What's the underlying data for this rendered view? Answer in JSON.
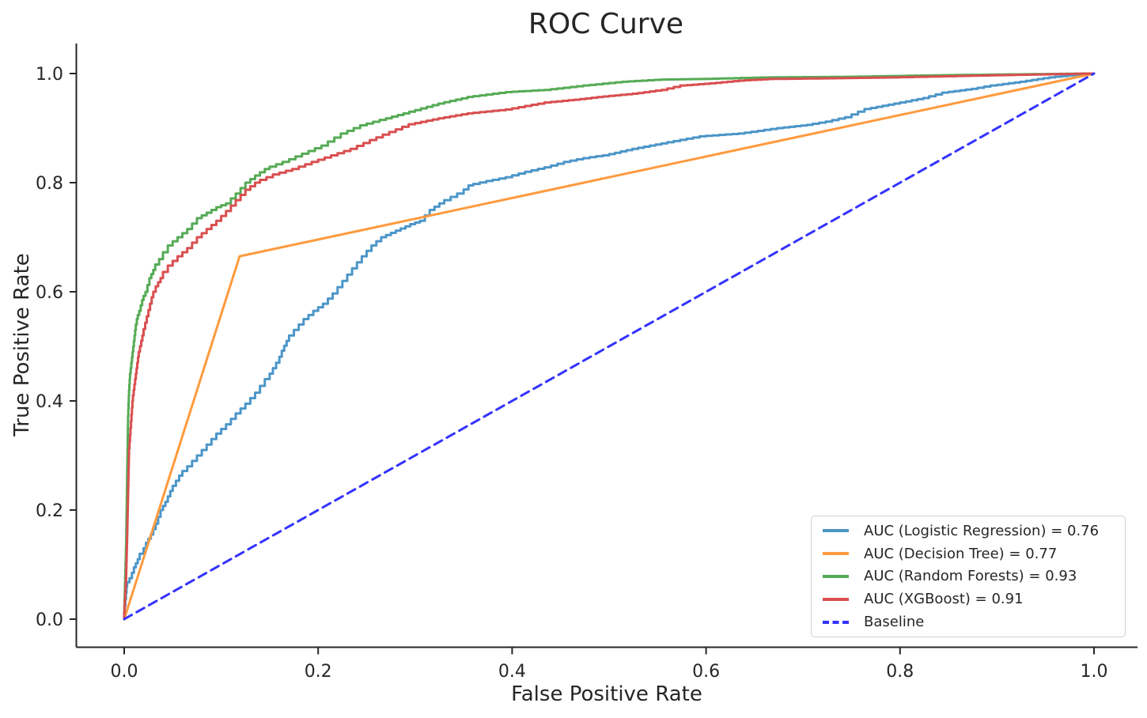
{
  "chart_data": {
    "type": "line",
    "title": "ROC Curve",
    "xlabel": "False Positive Rate",
    "ylabel": "True Positive Rate",
    "grid": false,
    "legend_position": "lower right",
    "axis_range_x": [
      -0.05,
      1.05
    ],
    "axis_range_y": [
      -0.05,
      1.05
    ],
    "x_ticks": {
      "values": [
        0.0,
        0.2,
        0.4,
        0.6,
        0.8,
        1.0
      ],
      "labels": [
        "0.0",
        "0.2",
        "0.4",
        "0.6",
        "0.8",
        "1.0"
      ]
    },
    "y_ticks": {
      "values": [
        0.0,
        0.2,
        0.4,
        0.6,
        0.8,
        1.0
      ],
      "labels": [
        "0.0",
        "0.2",
        "0.4",
        "0.6",
        "0.8",
        "1.0"
      ]
    },
    "series": [
      {
        "name": "Logistic Regression",
        "auc": 0.76,
        "color": "#4c96c8",
        "dash": false,
        "step": true,
        "points": [
          [
            0,
            0
          ],
          [
            0.003,
            0.06
          ],
          [
            0.008,
            0.075
          ],
          [
            0.012,
            0.095
          ],
          [
            0.016,
            0.11
          ],
          [
            0.02,
            0.12
          ],
          [
            0.025,
            0.14
          ],
          [
            0.03,
            0.155
          ],
          [
            0.035,
            0.175
          ],
          [
            0.04,
            0.2
          ],
          [
            0.045,
            0.215
          ],
          [
            0.05,
            0.235
          ],
          [
            0.06,
            0.263
          ],
          [
            0.07,
            0.28
          ],
          [
            0.08,
            0.3
          ],
          [
            0.09,
            0.32
          ],
          [
            0.1,
            0.34
          ],
          [
            0.11,
            0.357
          ],
          [
            0.12,
            0.377
          ],
          [
            0.13,
            0.395
          ],
          [
            0.14,
            0.415
          ],
          [
            0.15,
            0.44
          ],
          [
            0.16,
            0.47
          ],
          [
            0.165,
            0.492
          ],
          [
            0.17,
            0.51
          ],
          [
            0.18,
            0.53
          ],
          [
            0.19,
            0.55
          ],
          [
            0.2,
            0.565
          ],
          [
            0.21,
            0.578
          ],
          [
            0.22,
            0.597
          ],
          [
            0.23,
            0.62
          ],
          [
            0.24,
            0.643
          ],
          [
            0.25,
            0.665
          ],
          [
            0.26,
            0.685
          ],
          [
            0.27,
            0.7
          ],
          [
            0.285,
            0.712
          ],
          [
            0.3,
            0.724
          ],
          [
            0.31,
            0.73
          ],
          [
            0.32,
            0.75
          ],
          [
            0.33,
            0.762
          ],
          [
            0.35,
            0.78
          ],
          [
            0.36,
            0.795
          ],
          [
            0.38,
            0.803
          ],
          [
            0.4,
            0.81
          ],
          [
            0.42,
            0.82
          ],
          [
            0.44,
            0.828
          ],
          [
            0.46,
            0.838
          ],
          [
            0.48,
            0.845
          ],
          [
            0.5,
            0.85
          ],
          [
            0.53,
            0.862
          ],
          [
            0.56,
            0.872
          ],
          [
            0.6,
            0.885
          ],
          [
            0.64,
            0.89
          ],
          [
            0.68,
            0.9
          ],
          [
            0.71,
            0.906
          ],
          [
            0.73,
            0.912
          ],
          [
            0.75,
            0.92
          ],
          [
            0.77,
            0.935
          ],
          [
            0.8,
            0.945
          ],
          [
            0.83,
            0.955
          ],
          [
            0.85,
            0.965
          ],
          [
            0.88,
            0.972
          ],
          [
            0.9,
            0.978
          ],
          [
            0.93,
            0.985
          ],
          [
            0.96,
            0.993
          ],
          [
            1,
            1
          ]
        ]
      },
      {
        "name": "Decision Tree",
        "auc": 0.77,
        "color": "#ff9a3e",
        "dash": false,
        "step": false,
        "points": [
          [
            0,
            0
          ],
          [
            0.119,
            0.665
          ],
          [
            1,
            1
          ]
        ]
      },
      {
        "name": "Random Forests",
        "auc": 0.93,
        "color": "#56ab56",
        "dash": false,
        "step": true,
        "points": [
          [
            0,
            0
          ],
          [
            0.002,
            0.13
          ],
          [
            0.003,
            0.25
          ],
          [
            0.004,
            0.36
          ],
          [
            0.005,
            0.41
          ],
          [
            0.006,
            0.44
          ],
          [
            0.008,
            0.47
          ],
          [
            0.01,
            0.5
          ],
          [
            0.012,
            0.53
          ],
          [
            0.014,
            0.55
          ],
          [
            0.017,
            0.565
          ],
          [
            0.02,
            0.585
          ],
          [
            0.024,
            0.6
          ],
          [
            0.028,
            0.625
          ],
          [
            0.032,
            0.64
          ],
          [
            0.04,
            0.66
          ],
          [
            0.05,
            0.685
          ],
          [
            0.06,
            0.7
          ],
          [
            0.07,
            0.715
          ],
          [
            0.08,
            0.735
          ],
          [
            0.09,
            0.745
          ],
          [
            0.1,
            0.755
          ],
          [
            0.11,
            0.762
          ],
          [
            0.12,
            0.78
          ],
          [
            0.13,
            0.8
          ],
          [
            0.14,
            0.813
          ],
          [
            0.15,
            0.825
          ],
          [
            0.17,
            0.838
          ],
          [
            0.19,
            0.853
          ],
          [
            0.21,
            0.868
          ],
          [
            0.23,
            0.89
          ],
          [
            0.25,
            0.905
          ],
          [
            0.27,
            0.915
          ],
          [
            0.3,
            0.93
          ],
          [
            0.33,
            0.945
          ],
          [
            0.36,
            0.957
          ],
          [
            0.4,
            0.966
          ],
          [
            0.44,
            0.97
          ],
          [
            0.48,
            0.978
          ],
          [
            0.52,
            0.985
          ],
          [
            0.56,
            0.989
          ],
          [
            0.6,
            0.99
          ],
          [
            0.67,
            0.993
          ],
          [
            0.75,
            0.994
          ],
          [
            0.85,
            0.997
          ],
          [
            1,
            1
          ]
        ]
      },
      {
        "name": "XGBoost",
        "auc": 0.91,
        "color": "#d94f50",
        "dash": false,
        "step": true,
        "points": [
          [
            0,
            0
          ],
          [
            0.002,
            0.07
          ],
          [
            0.003,
            0.14
          ],
          [
            0.004,
            0.22
          ],
          [
            0.005,
            0.3
          ],
          [
            0.007,
            0.35
          ],
          [
            0.009,
            0.4
          ],
          [
            0.012,
            0.44
          ],
          [
            0.015,
            0.48
          ],
          [
            0.02,
            0.52
          ],
          [
            0.025,
            0.555
          ],
          [
            0.03,
            0.59
          ],
          [
            0.035,
            0.61
          ],
          [
            0.04,
            0.625
          ],
          [
            0.05,
            0.648
          ],
          [
            0.06,
            0.665
          ],
          [
            0.07,
            0.68
          ],
          [
            0.08,
            0.7
          ],
          [
            0.09,
            0.715
          ],
          [
            0.1,
            0.73
          ],
          [
            0.11,
            0.748
          ],
          [
            0.12,
            0.768
          ],
          [
            0.13,
            0.787
          ],
          [
            0.14,
            0.8
          ],
          [
            0.16,
            0.815
          ],
          [
            0.18,
            0.825
          ],
          [
            0.2,
            0.838
          ],
          [
            0.22,
            0.85
          ],
          [
            0.24,
            0.862
          ],
          [
            0.26,
            0.878
          ],
          [
            0.28,
            0.893
          ],
          [
            0.3,
            0.907
          ],
          [
            0.33,
            0.918
          ],
          [
            0.36,
            0.927
          ],
          [
            0.4,
            0.934
          ],
          [
            0.44,
            0.947
          ],
          [
            0.47,
            0.952
          ],
          [
            0.5,
            0.958
          ],
          [
            0.53,
            0.963
          ],
          [
            0.56,
            0.97
          ],
          [
            0.58,
            0.978
          ],
          [
            0.61,
            0.982
          ],
          [
            0.64,
            0.987
          ],
          [
            0.67,
            0.99
          ],
          [
            0.72,
            0.991
          ],
          [
            0.8,
            0.993
          ],
          [
            0.88,
            0.996
          ],
          [
            0.94,
            0.998
          ],
          [
            1,
            1
          ]
        ]
      },
      {
        "name": "Baseline",
        "auc": null,
        "color": "#3333ff",
        "dash": true,
        "step": false,
        "points": [
          [
            0,
            0
          ],
          [
            1,
            1
          ]
        ]
      }
    ],
    "legend_items": [
      {
        "label": "AUC (Logistic Regression) = 0.76",
        "color": "#4c96c8",
        "dash": false
      },
      {
        "label": "AUC (Decision Tree) = 0.77",
        "color": "#ff9a3e",
        "dash": false
      },
      {
        "label": "AUC (Random Forests) = 0.93",
        "color": "#56ab56",
        "dash": false
      },
      {
        "label": "AUC (XGBoost) = 0.91",
        "color": "#d94f50",
        "dash": false
      },
      {
        "label": "Baseline",
        "color": "#3333ff",
        "dash": true
      }
    ]
  }
}
